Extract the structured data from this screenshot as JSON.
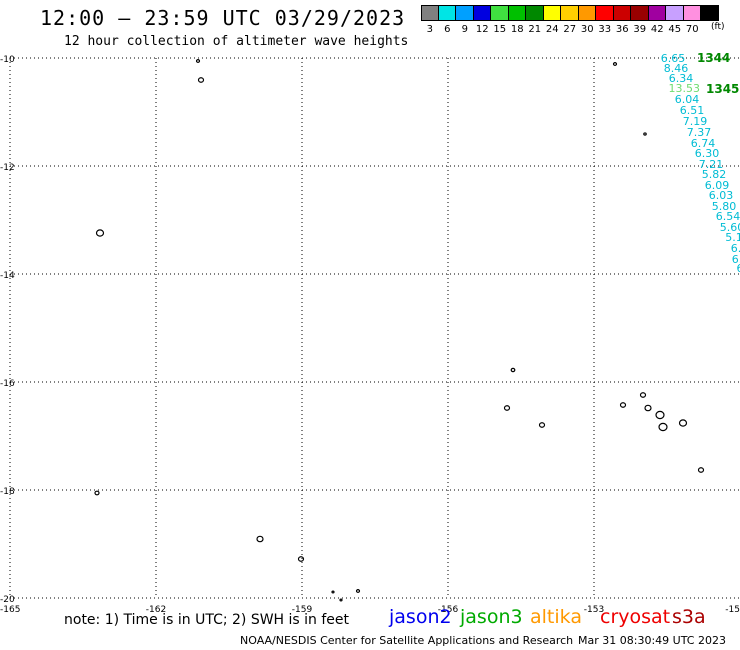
{
  "header": {
    "title": "12:00 – 23:59 UTC 03/29/2023",
    "subtitle": "12 hour collection of altimeter wave heights"
  },
  "legend": {
    "unit": "(ft)",
    "items": [
      {
        "label": "3",
        "color": "#808080"
      },
      {
        "label": "6",
        "color": "#00e5e5"
      },
      {
        "label": "9",
        "color": "#00a0ff"
      },
      {
        "label": "12",
        "color": "#0000e0"
      },
      {
        "label": "15",
        "color": "#40e040"
      },
      {
        "label": "18",
        "color": "#00c000"
      },
      {
        "label": "21",
        "color": "#008800"
      },
      {
        "label": "24",
        "color": "#ffff00"
      },
      {
        "label": "27",
        "color": "#ffd000"
      },
      {
        "label": "30",
        "color": "#ff9900"
      },
      {
        "label": "33",
        "color": "#ff0000"
      },
      {
        "label": "36",
        "color": "#cc0000"
      },
      {
        "label": "39",
        "color": "#990000"
      },
      {
        "label": "42",
        "color": "#a000a0"
      },
      {
        "label": "45",
        "color": "#c8a0ff"
      },
      {
        "label": "70",
        "color": "#ff90e0"
      },
      {
        "label": "",
        "color": "#000000"
      }
    ]
  },
  "map": {
    "lon_ticks": [
      "-165",
      "-162",
      "-159",
      "-156",
      "-153",
      "-15"
    ],
    "lat_ticks": [
      "-10",
      "-12",
      "-14",
      "-16",
      "-18",
      "-20"
    ],
    "lon_range": [
      -165,
      -150
    ],
    "lat_range": [
      -20,
      -10
    ],
    "grid": "dotted",
    "pass_labels": [
      {
        "text": "1344",
        "color": "#008800"
      },
      {
        "text": "1345",
        "color": "#008800"
      }
    ],
    "observations": [
      {
        "text": "6.65",
        "color": "#00bcd4"
      },
      {
        "text": "8.46",
        "color": "#00bcd4"
      },
      {
        "text": "6.34",
        "color": "#00bcd4"
      },
      {
        "text": "13.53",
        "color": "#6fdc6f"
      },
      {
        "text": "6.04",
        "color": "#00bcd4"
      },
      {
        "text": "6.51",
        "color": "#00bcd4"
      },
      {
        "text": "7.19",
        "color": "#00bcd4"
      },
      {
        "text": "7.37",
        "color": "#00bcd4"
      },
      {
        "text": "6.74",
        "color": "#00bcd4"
      },
      {
        "text": "6.30",
        "color": "#00bcd4"
      },
      {
        "text": "7.21",
        "color": "#00bcd4"
      },
      {
        "text": "5.82",
        "color": "#00bcd4"
      },
      {
        "text": "6.09",
        "color": "#00bcd4"
      },
      {
        "text": "6.03",
        "color": "#00bcd4"
      },
      {
        "text": "5.80",
        "color": "#00bcd4"
      },
      {
        "text": "6.54",
        "color": "#00bcd4"
      },
      {
        "text": "5.60",
        "color": "#00bcd4"
      },
      {
        "text": "5.1",
        "color": "#00bcd4"
      },
      {
        "text": "6.",
        "color": "#00bcd4"
      },
      {
        "text": "6.",
        "color": "#00bcd4"
      },
      {
        "text": "6",
        "color": "#00bcd4"
      }
    ]
  },
  "footer": {
    "note": "note: 1) Time is in UTC; 2) SWH is in feet",
    "satellites": [
      {
        "name": "jason2",
        "color": "#0000ee"
      },
      {
        "name": "jason3",
        "color": "#00aa00"
      },
      {
        "name": "altika",
        "color": "#ff9900"
      },
      {
        "name": "cryosat",
        "color": "#ee0000"
      },
      {
        "name": "s3a",
        "color": "#aa0000"
      }
    ],
    "credit": "NOAA/NESDIS Center for Satellite Applications and Research",
    "timestamp": "Mar 31 08:30:49 UTC 2023"
  }
}
